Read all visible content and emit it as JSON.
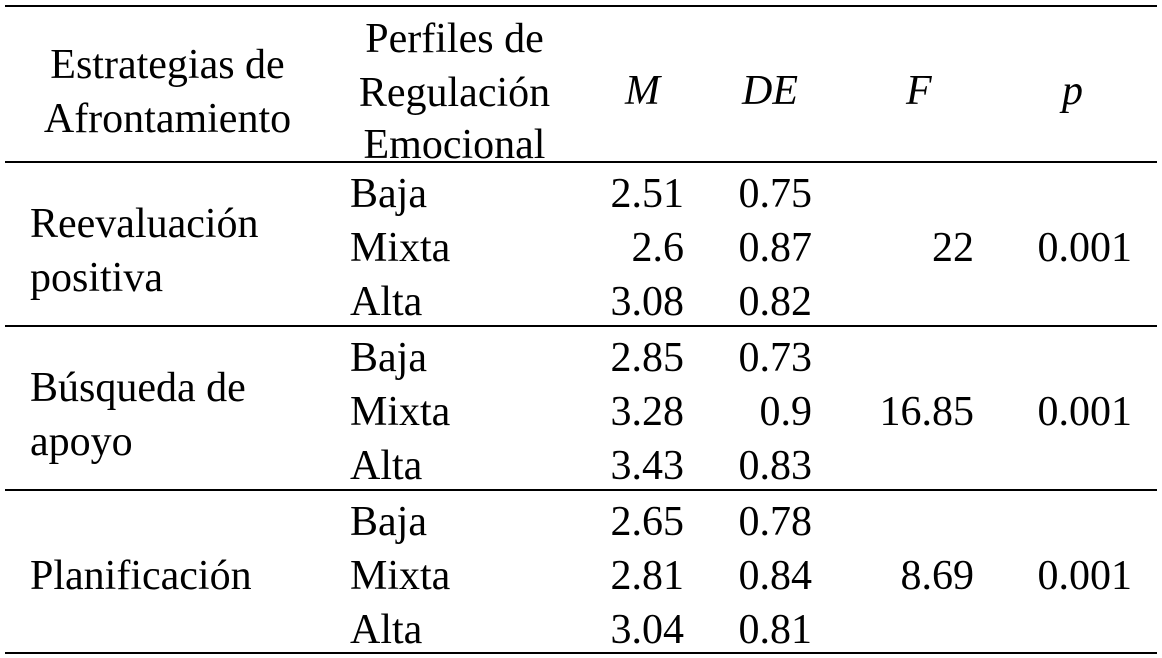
{
  "headers": {
    "col1_line1": "Estrategias de",
    "col1_line2": "Afrontamiento",
    "col2_line1": "Perfiles de",
    "col2_line2": "Regulación",
    "col2_line3": "Emocional",
    "m": "M",
    "de": "DE",
    "f": "F",
    "p": "p"
  },
  "groups": [
    {
      "strategy_line1": "Reevaluación",
      "strategy_line2": "positiva",
      "rows": [
        {
          "profile": "Baja",
          "m": "2.51",
          "de": "0.75"
        },
        {
          "profile": "Mixta",
          "m": "2.6",
          "de": "0.87"
        },
        {
          "profile": "Alta",
          "m": "3.08",
          "de": "0.82"
        }
      ],
      "f": "22",
      "p": "0.001"
    },
    {
      "strategy_line1": "Búsqueda de",
      "strategy_line2": "apoyo",
      "rows": [
        {
          "profile": "Baja",
          "m": "2.85",
          "de": "0.73"
        },
        {
          "profile": "Mixta",
          "m": "3.28",
          "de": "0.9"
        },
        {
          "profile": "Alta",
          "m": "3.43",
          "de": "0.83"
        }
      ],
      "f": "16.85",
      "p": "0.001"
    },
    {
      "strategy_line1": "Planificación",
      "rows": [
        {
          "profile": "Baja",
          "m": "2.65",
          "de": "0.78"
        },
        {
          "profile": "Mixta",
          "m": "2.81",
          "de": "0.84"
        },
        {
          "profile": "Alta",
          "m": "3.04",
          "de": "0.81"
        }
      ],
      "f": "8.69",
      "p": "0.001"
    }
  ]
}
